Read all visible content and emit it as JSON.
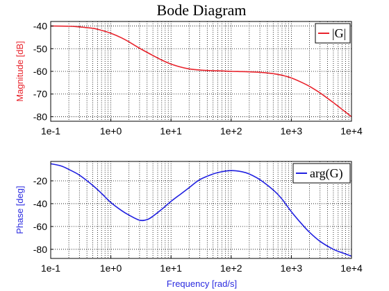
{
  "title": "Bode Diagram",
  "chart_data": [
    {
      "type": "line",
      "ylabel": "Magnitude [dB]",
      "ylabel_color": "#e8222b",
      "xscale": "log",
      "xlim": [
        0.1,
        10000
      ],
      "ylim": [
        -82,
        -38
      ],
      "xticks": [
        0.1,
        1,
        10,
        100,
        1000,
        10000
      ],
      "xticklabels": [
        "1e-1",
        "1e+0",
        "1e+1",
        "1e+2",
        "1e+3",
        "1e+4"
      ],
      "yticks": [
        -40,
        -50,
        -60,
        -70,
        -80
      ],
      "yticklabels": [
        "-40",
        "-50",
        "-60",
        "-70",
        "-80"
      ],
      "grid": true,
      "legend_position": "top-right",
      "series": [
        {
          "name": "|G|",
          "color": "#e8222b",
          "x": [
            0.1,
            0.2,
            0.3,
            0.5,
            0.7,
            1,
            1.5,
            2,
            3,
            5,
            7,
            10,
            15,
            20,
            30,
            50,
            70,
            100,
            150,
            200,
            300,
            500,
            700,
            1000,
            1500,
            2000,
            3000,
            5000,
            7000,
            10000
          ],
          "y": [
            -40.0,
            -40.1,
            -40.4,
            -41.0,
            -41.9,
            -43.2,
            -45.2,
            -47.0,
            -49.8,
            -53.0,
            -55.0,
            -56.8,
            -58.2,
            -58.9,
            -59.4,
            -59.7,
            -59.8,
            -60.0,
            -60.1,
            -60.2,
            -60.4,
            -61.0,
            -61.7,
            -62.9,
            -64.9,
            -66.6,
            -69.5,
            -73.8,
            -76.8,
            -80.0
          ]
        }
      ]
    },
    {
      "type": "line",
      "xlabel": "Frequency [rad/s]",
      "ylabel": "Phase [deg]",
      "label_color": "#2a2ae0",
      "xscale": "log",
      "xlim": [
        0.1,
        10000
      ],
      "ylim": [
        -88,
        -3
      ],
      "xticks": [
        0.1,
        1,
        10,
        100,
        1000,
        10000
      ],
      "xticklabels": [
        "1e-1",
        "1e+0",
        "1e+1",
        "1e+2",
        "1e+3",
        "1e+4"
      ],
      "yticks": [
        -20,
        -40,
        -60,
        -80
      ],
      "yticklabels": [
        "-20",
        "-40",
        "-60",
        "-80"
      ],
      "grid": true,
      "legend_position": "top-right",
      "series": [
        {
          "name": "arg(G)",
          "color": "#1f1fe0",
          "x": [
            0.1,
            0.15,
            0.2,
            0.3,
            0.5,
            0.7,
            1,
            1.5,
            2,
            3,
            4,
            5,
            7,
            10,
            15,
            20,
            30,
            50,
            70,
            100,
            150,
            200,
            300,
            500,
            700,
            1000,
            1500,
            2000,
            3000,
            5000,
            7000,
            10000
          ],
          "y": [
            -5,
            -7,
            -10,
            -15,
            -24,
            -31,
            -39,
            -46,
            -50,
            -54.5,
            -54,
            -51,
            -45,
            -38,
            -31,
            -26,
            -19,
            -14,
            -12,
            -11,
            -12,
            -14,
            -19,
            -28,
            -36,
            -47,
            -58,
            -65,
            -73,
            -80,
            -83,
            -86
          ]
        }
      ]
    }
  ]
}
